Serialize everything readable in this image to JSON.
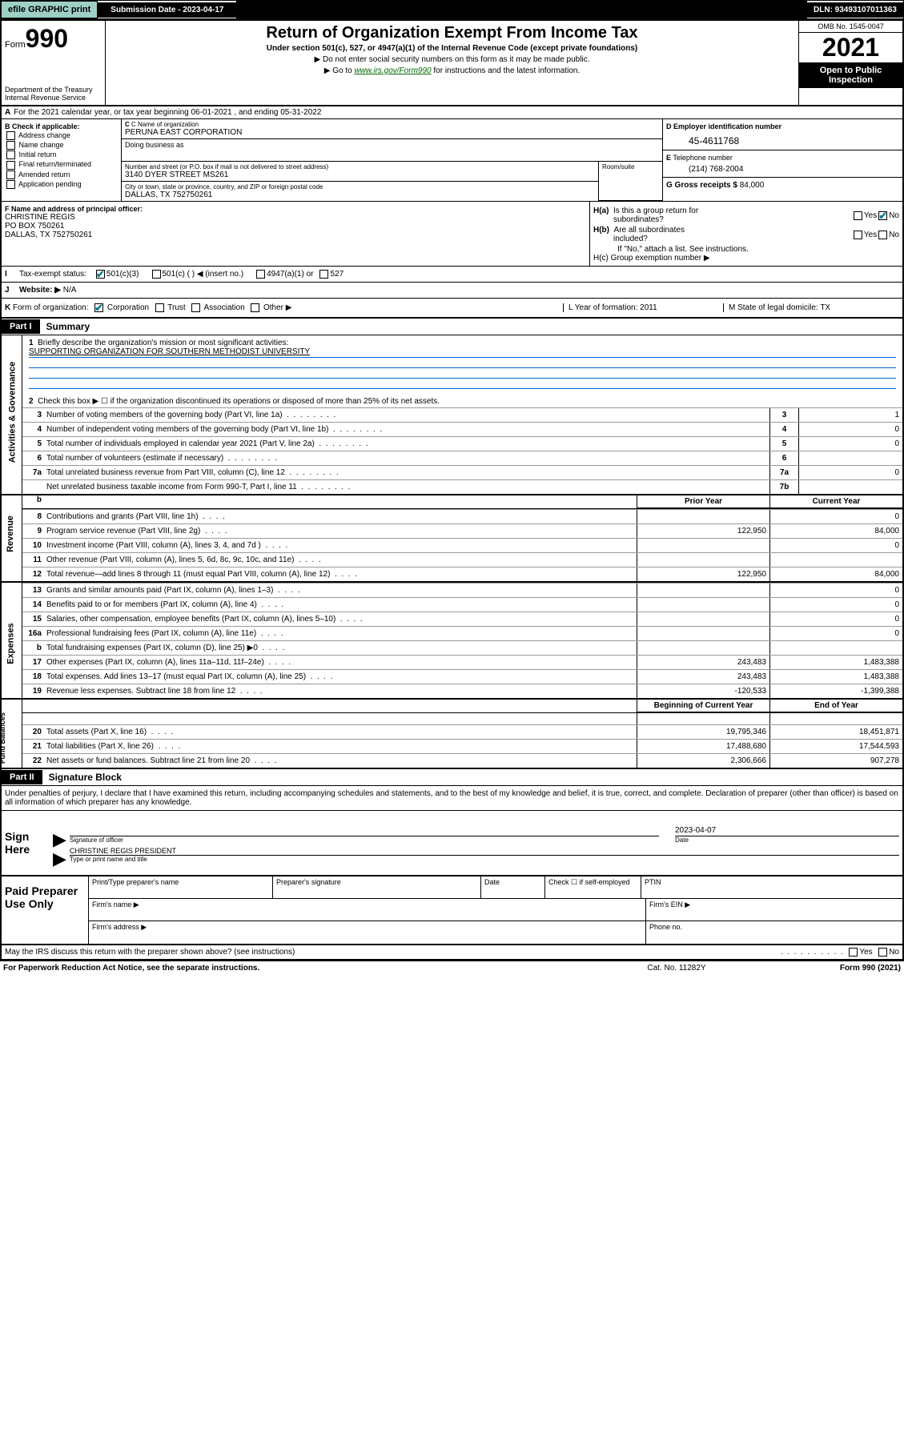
{
  "topbar": {
    "efile": "efile GRAPHIC print",
    "submission_label": "Submission Date - 2023-04-17",
    "dln": "DLN: 93493107011363"
  },
  "header": {
    "form_prefix": "Form",
    "form_num": "990",
    "dept": "Department of the Treasury\nInternal Revenue Service",
    "title": "Return of Organization Exempt From Income Tax",
    "subtitle": "Under section 501(c), 527, or 4947(a)(1) of the Internal Revenue Code (except private foundations)",
    "note1": "▶ Do not enter social security numbers on this form as it may be made public.",
    "note2_pre": "▶ Go to ",
    "note2_link": "www.irs.gov/Form990",
    "note2_post": " for instructions and the latest information.",
    "omb": "OMB No. 1545-0047",
    "year": "2021",
    "open_pub": "Open to Public Inspection"
  },
  "row_a": {
    "label": "A",
    "text": "For the 2021 calendar year, or tax year beginning 06-01-2021  , and ending 05-31-2022"
  },
  "section_b": {
    "b_label": "B Check if applicable:",
    "checks": [
      "Address change",
      "Name change",
      "Initial return",
      "Final return/terminated",
      "Amended return",
      "Application pending"
    ],
    "c_label": "C Name of organization",
    "org_name": "PERUNA EAST CORPORATION",
    "dba_label": "Doing business as",
    "street_label": "Number and street (or P.O. box if mail is not delivered to street address)",
    "street": "3140 DYER STREET MS261",
    "room_label": "Room/suite",
    "city_label": "City or town, state or province, country, and ZIP or foreign postal code",
    "city": "DALLAS, TX  752750261",
    "d_label": "D Employer identification number",
    "ein": "45-4611768",
    "e_label": "E Telephone number",
    "phone": "(214) 768-2004",
    "g_label": "G Gross receipts $",
    "gross": "84,000"
  },
  "section_f": {
    "f_label": "F Name and address of principal officer:",
    "name": "CHRISTINE REGIS",
    "addr1": "PO BOX 750261",
    "addr2": "DALLAS, TX  752750261"
  },
  "section_h": {
    "ha": "H(a)  Is this a group return for",
    "ha2": "subordinates?",
    "hb": "H(b)  Are all subordinates included?",
    "hb_note": "If \"No,\" attach a list. See instructions.",
    "hc": "H(c)  Group exemption number ▶"
  },
  "row_i": {
    "label": "I",
    "text": "Tax-exempt status:",
    "opt1": "501(c)(3)",
    "opt2": "501(c) (   ) ◀ (insert no.)",
    "opt3": "4947(a)(1) or",
    "opt4": "527"
  },
  "row_j": {
    "label": "J",
    "text": "Website: ▶",
    "val": "N/A"
  },
  "row_k": {
    "label": "K",
    "text": "Form of organization:",
    "opts": [
      "Corporation",
      "Trust",
      "Association",
      "Other ▶"
    ],
    "l_label": "L Year of formation: 2011",
    "m_label": "M State of legal domicile: TX"
  },
  "part1": {
    "tag": "Part I",
    "title": "Summary",
    "groups": {
      "activities": "Activities & Governance",
      "revenue": "Revenue",
      "expenses": "Expenses",
      "net": "Net Assets or Fund Balances"
    },
    "line1_label": "Briefly describe the organization's mission or most significant activities:",
    "mission": "SUPPORTING ORGANIZATION FOR SOUTHERN METHODIST UNIVERSITY",
    "line2": "Check this box ▶ ☐  if the organization discontinued its operations or disposed of more than 25% of its net assets.",
    "lines_single": [
      {
        "num": "3",
        "desc": "Number of voting members of the governing body (Part VI, line 1a)",
        "key": "3",
        "val": "1"
      },
      {
        "num": "4",
        "desc": "Number of independent voting members of the governing body (Part VI, line 1b)",
        "key": "4",
        "val": "0"
      },
      {
        "num": "5",
        "desc": "Total number of individuals employed in calendar year 2021 (Part V, line 2a)",
        "key": "5",
        "val": "0"
      },
      {
        "num": "6",
        "desc": "Total number of volunteers (estimate if necessary)",
        "key": "6",
        "val": ""
      },
      {
        "num": "7a",
        "desc": "Total unrelated business revenue from Part VIII, column (C), line 12",
        "key": "7a",
        "val": "0"
      },
      {
        "num": "",
        "desc": "Net unrelated business taxable income from Form 990-T, Part I, line 11",
        "key": "7b",
        "val": ""
      }
    ],
    "hdr_prior": "Prior Year",
    "hdr_curr": "Current Year",
    "revenue_lines": [
      {
        "num": "8",
        "desc": "Contributions and grants (Part VIII, line 1h)",
        "prior": "",
        "curr": "0"
      },
      {
        "num": "9",
        "desc": "Program service revenue (Part VIII, line 2g)",
        "prior": "122,950",
        "curr": "84,000"
      },
      {
        "num": "10",
        "desc": "Investment income (Part VIII, column (A), lines 3, 4, and 7d )",
        "prior": "",
        "curr": "0"
      },
      {
        "num": "11",
        "desc": "Other revenue (Part VIII, column (A), lines 5, 6d, 8c, 9c, 10c, and 11e)",
        "prior": "",
        "curr": ""
      },
      {
        "num": "12",
        "desc": "Total revenue—add lines 8 through 11 (must equal Part VIII, column (A), line 12)",
        "prior": "122,950",
        "curr": "84,000"
      }
    ],
    "expense_lines": [
      {
        "num": "13",
        "desc": "Grants and similar amounts paid (Part IX, column (A), lines 1–3)",
        "prior": "",
        "curr": "0"
      },
      {
        "num": "14",
        "desc": "Benefits paid to or for members (Part IX, column (A), line 4)",
        "prior": "",
        "curr": "0"
      },
      {
        "num": "15",
        "desc": "Salaries, other compensation, employee benefits (Part IX, column (A), lines 5–10)",
        "prior": "",
        "curr": "0"
      },
      {
        "num": "16a",
        "desc": "Professional fundraising fees (Part IX, column (A), line 11e)",
        "prior": "",
        "curr": "0"
      },
      {
        "num": "b",
        "desc": "Total fundraising expenses (Part IX, column (D), line 25) ▶0",
        "prior": "GRAY",
        "curr": "GRAY"
      },
      {
        "num": "17",
        "desc": "Other expenses (Part IX, column (A), lines 11a–11d, 11f–24e)",
        "prior": "243,483",
        "curr": "1,483,388"
      },
      {
        "num": "18",
        "desc": "Total expenses. Add lines 13–17 (must equal Part IX, column (A), line 25)",
        "prior": "243,483",
        "curr": "1,483,388"
      },
      {
        "num": "19",
        "desc": "Revenue less expenses. Subtract line 18 from line 12",
        "prior": "-120,533",
        "curr": "-1,399,388"
      }
    ],
    "hdr_begin": "Beginning of Current Year",
    "hdr_end": "End of Year",
    "net_lines": [
      {
        "num": "20",
        "desc": "Total assets (Part X, line 16)",
        "prior": "19,795,346",
        "curr": "18,451,871"
      },
      {
        "num": "21",
        "desc": "Total liabilities (Part X, line 26)",
        "prior": "17,488,680",
        "curr": "17,544,593"
      },
      {
        "num": "22",
        "desc": "Net assets or fund balances. Subtract line 21 from line 20",
        "prior": "2,306,666",
        "curr": "907,278"
      }
    ]
  },
  "part2": {
    "tag": "Part II",
    "title": "Signature Block",
    "penalty": "Under penalties of perjury, I declare that I have examined this return, including accompanying schedules and statements, and to the best of my knowledge and belief, it is true, correct, and complete. Declaration of preparer (other than officer) is based on all information of which preparer has any knowledge."
  },
  "sign": {
    "label": "Sign Here",
    "sig_of_officer": "Signature of officer",
    "date_label": "Date",
    "date": "2023-04-07",
    "name_title": "CHRISTINE REGIS  PRESIDENT",
    "type_label": "Type or print name and title"
  },
  "paid": {
    "label": "Paid Preparer Use Only",
    "r1c1": "Print/Type preparer's name",
    "r1c2": "Preparer's signature",
    "r1c3": "Date",
    "r1c4": "Check ☐ if self-employed",
    "r1c5": "PTIN",
    "r2_firm": "Firm's name  ▶",
    "r2_ein": "Firm's EIN ▶",
    "r3_addr": "Firm's address ▶",
    "r3_phone": "Phone no."
  },
  "discuss": "May the IRS discuss this return with the preparer shown above? (see instructions)",
  "footer": {
    "left": "For Paperwork Reduction Act Notice, see the separate instructions.",
    "mid": "Cat. No. 11282Y",
    "right": "Form 990 (2021)"
  },
  "colors": {
    "link": "#006600",
    "check": "#0a7e8c",
    "mission_line": "#0066cc",
    "btn_bg": "#9fd0c7"
  }
}
